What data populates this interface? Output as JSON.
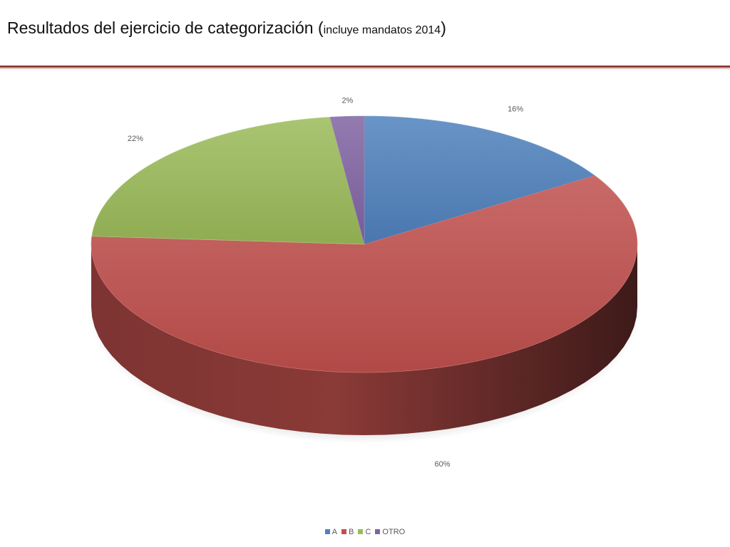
{
  "title": {
    "main": "Resultados del ejercicio de categorización (",
    "sub": "incluye mandatos 2014",
    "close": ")"
  },
  "chart_data": {
    "type": "pie",
    "style": "3d",
    "title": "",
    "legend_position": "bottom",
    "categories": [
      "A",
      "B",
      "C",
      "OTRO"
    ],
    "values": [
      16,
      60,
      22,
      2
    ],
    "labels": [
      "16%",
      "60%",
      "22%",
      "2%"
    ],
    "colors": {
      "A": "#4f81bd",
      "B": "#c0504d",
      "C": "#9bbb59",
      "OTRO": "#8064a2"
    }
  }
}
